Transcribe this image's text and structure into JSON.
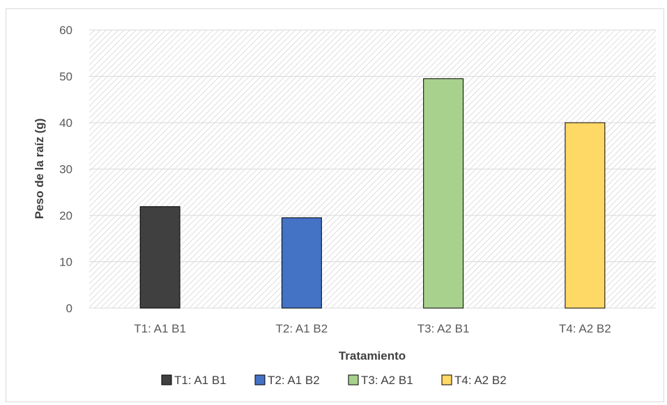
{
  "chart_data": {
    "type": "bar",
    "categories": [
      "T1: A1 B1",
      "T2: A1 B2",
      "T3: A2 B1",
      "T4: A2 B2"
    ],
    "values": [
      21.9,
      19.5,
      49.5,
      40.0
    ],
    "colors": [
      "#404040",
      "#4472c4",
      "#a9d18e",
      "#ffd966"
    ],
    "xlabel": "Tratamiento",
    "ylabel": "Peso de la raíz (g)",
    "ylim": [
      0,
      60
    ],
    "yticks": [
      0,
      10,
      20,
      30,
      40,
      50,
      60
    ],
    "grid": true,
    "plot_background": "diagonal-hatch",
    "legend": {
      "placement": "bottom",
      "entries": [
        "T1: A1 B1",
        "T2: A1 B2",
        "T3: A2 B1",
        "T4: A2 B2"
      ]
    }
  }
}
